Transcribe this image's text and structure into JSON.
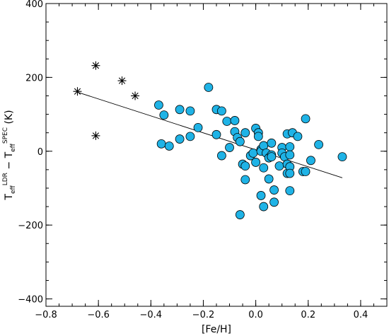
{
  "chart_data": {
    "type": "scatter",
    "xlabel": "[Fe/H]",
    "ylabel": {
      "base1": "T",
      "sub1": "eff",
      "sup1": "LDR",
      "middle": " − ",
      "base2": "T",
      "sub2": "eff",
      "sup2": "SPEC",
      "unit": " (K)"
    },
    "xlim": [
      -0.8,
      0.5
    ],
    "ylim": [
      -420,
      400
    ],
    "x_ticks": [
      -0.8,
      -0.6,
      -0.4,
      -0.2,
      0.0,
      0.2,
      0.4
    ],
    "x_tick_labels": [
      "−0.8",
      "−0.6",
      "−0.4",
      "−0.2",
      "0.0",
      "0.2",
      "0.4"
    ],
    "y_ticks": [
      -400,
      -200,
      0,
      200,
      400
    ],
    "y_tick_labels": [
      "−400",
      "−200",
      "0",
      "200",
      "400"
    ],
    "grid": false,
    "colors": {
      "circle_fill": "#1fb3e6",
      "marker_edge": "#000000"
    },
    "series": [
      {
        "marker": "circle",
        "points": [
          [
            -0.37,
            125
          ],
          [
            -0.36,
            20
          ],
          [
            -0.35,
            98
          ],
          [
            -0.33,
            14
          ],
          [
            -0.29,
            113
          ],
          [
            -0.29,
            33
          ],
          [
            -0.25,
            109
          ],
          [
            -0.25,
            40
          ],
          [
            -0.22,
            64
          ],
          [
            -0.18,
            173
          ],
          [
            -0.15,
            113
          ],
          [
            -0.15,
            45
          ],
          [
            -0.13,
            109
          ],
          [
            -0.13,
            -12
          ],
          [
            -0.11,
            81
          ],
          [
            -0.1,
            10
          ],
          [
            -0.08,
            83
          ],
          [
            -0.08,
            53
          ],
          [
            -0.07,
            37
          ],
          [
            -0.06,
            26
          ],
          [
            -0.06,
            -172
          ],
          [
            -0.05,
            -35
          ],
          [
            -0.04,
            -77
          ],
          [
            -0.04,
            -40
          ],
          [
            -0.04,
            50
          ],
          [
            -0.02,
            -12
          ],
          [
            -0.01,
            -5
          ],
          [
            0.0,
            62
          ],
          [
            0.0,
            -30
          ],
          [
            0.01,
            50
          ],
          [
            0.01,
            40
          ],
          [
            0.02,
            5
          ],
          [
            0.02,
            0
          ],
          [
            0.02,
            -120
          ],
          [
            0.03,
            -150
          ],
          [
            0.03,
            -45
          ],
          [
            0.03,
            15
          ],
          [
            0.04,
            -5
          ],
          [
            0.05,
            -18
          ],
          [
            0.05,
            -75
          ],
          [
            0.06,
            22
          ],
          [
            0.06,
            -10
          ],
          [
            0.06,
            -15
          ],
          [
            0.07,
            -105
          ],
          [
            0.07,
            -138
          ],
          [
            0.09,
            -40
          ],
          [
            0.1,
            10
          ],
          [
            0.1,
            -5
          ],
          [
            0.11,
            -15
          ],
          [
            0.12,
            47
          ],
          [
            0.12,
            -35
          ],
          [
            0.12,
            -60
          ],
          [
            0.13,
            12
          ],
          [
            0.13,
            -10
          ],
          [
            0.13,
            -42
          ],
          [
            0.13,
            -107
          ],
          [
            0.13,
            -60
          ],
          [
            0.14,
            50
          ],
          [
            0.16,
            40
          ],
          [
            0.18,
            -55
          ],
          [
            0.19,
            88
          ],
          [
            0.19,
            -55
          ],
          [
            0.21,
            -25
          ],
          [
            0.24,
            18
          ],
          [
            0.33,
            -15
          ]
        ]
      },
      {
        "marker": "asterisk",
        "points": [
          [
            -0.68,
            162
          ],
          [
            -0.61,
            232
          ],
          [
            -0.61,
            42
          ],
          [
            -0.51,
            191
          ],
          [
            -0.46,
            150
          ]
        ]
      }
    ],
    "fit_line": {
      "x": [
        -0.68,
        0.33
      ],
      "y": [
        160,
        -72
      ]
    }
  }
}
